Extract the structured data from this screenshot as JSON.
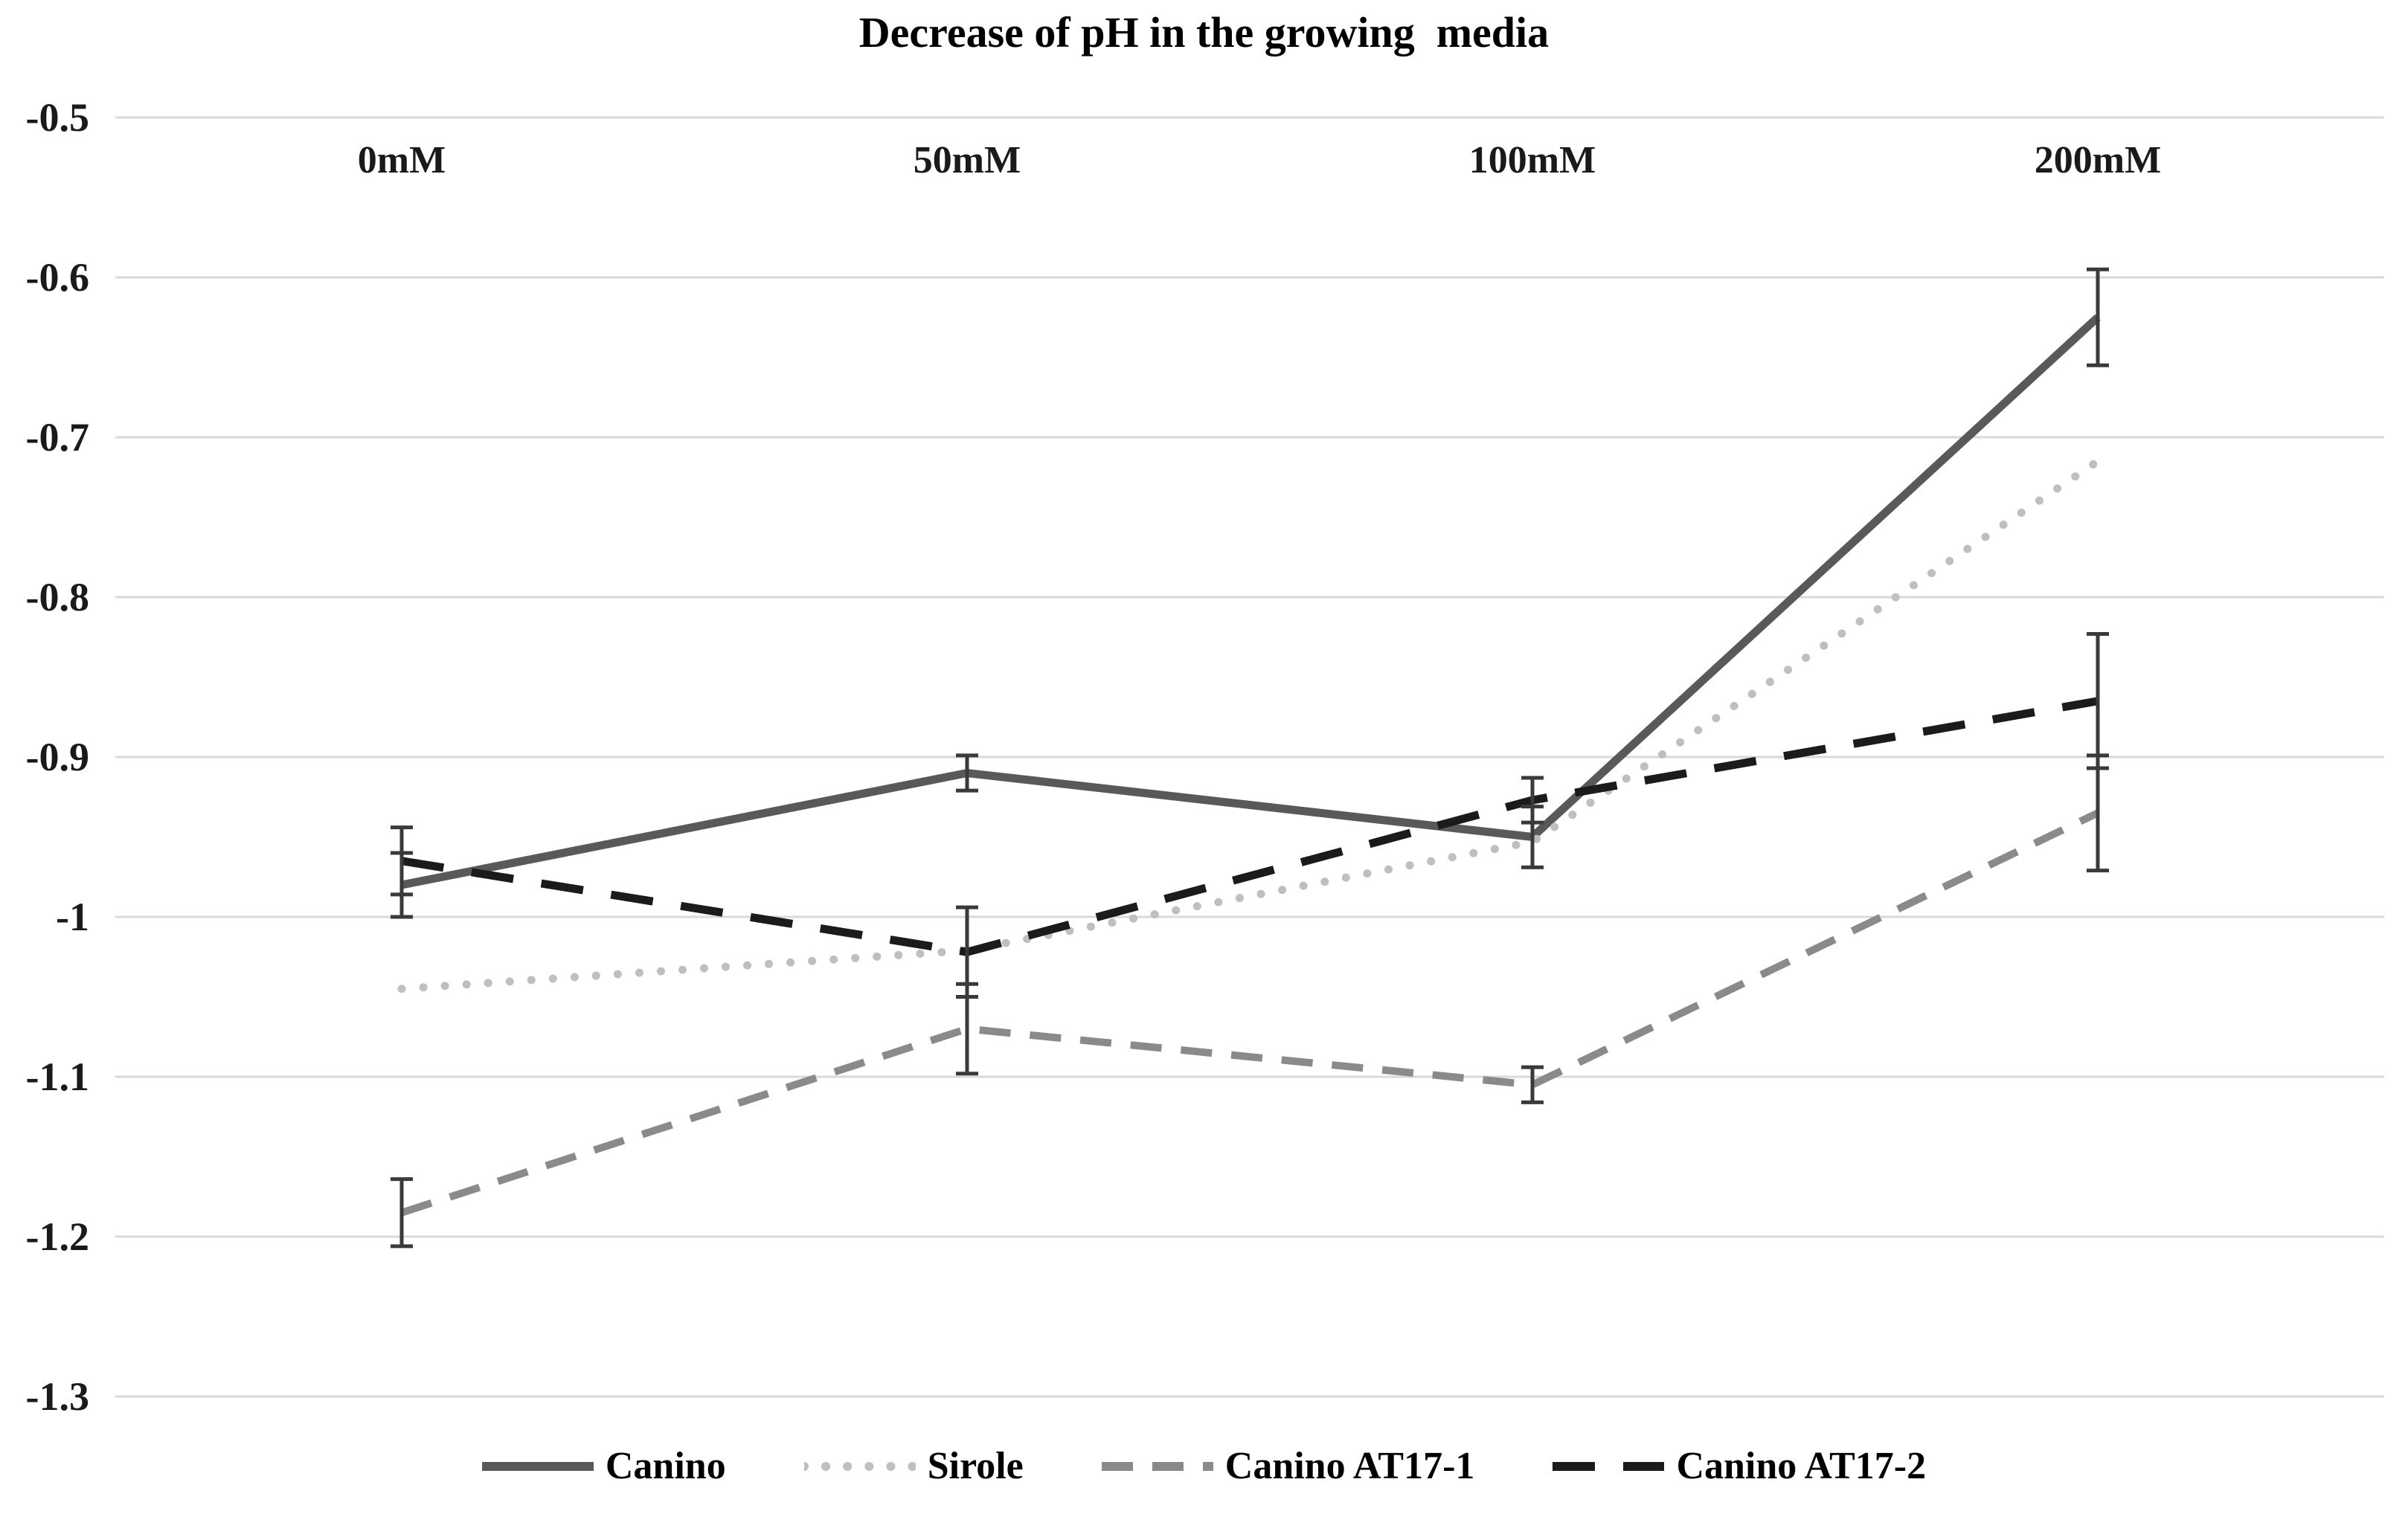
{
  "title": "Decrease of pH in the growing  media",
  "chart_data": {
    "type": "line",
    "title": "Decrease of pH in the growing  media",
    "categories": [
      "0mM",
      "50mM",
      "100mM",
      "200mM"
    ],
    "y_tick_labels": [
      "-0.5",
      "-0.6",
      "-0.7",
      "-0.8",
      "-0.9",
      "-1",
      "-1.1",
      "-1.2",
      "-1.3"
    ],
    "y_tick_values": [
      -0.5,
      -0.6,
      -0.7,
      -0.8,
      -0.9,
      -1.0,
      -1.1,
      -1.2,
      -1.3
    ],
    "ylim": [
      -1.3,
      -0.5
    ],
    "grid": true,
    "gridline_color": "#d9d9d9",
    "error_bar_color": "#3a3a3a",
    "background_color": "#ffffff",
    "legend_position": "bottom",
    "series": [
      {
        "name": "Canino",
        "style": "solid",
        "color": "#595959",
        "values": [
          -0.98,
          -0.91,
          -0.95,
          -0.625
        ],
        "errors": [
          0.02,
          0.011,
          0.019,
          0.03
        ]
      },
      {
        "name": "Sirole",
        "style": "dotted",
        "color": "#bfbfbf",
        "values": [
          -1.045,
          -1.021,
          -0.953,
          -0.715
        ],
        "errors": [
          0,
          0,
          0,
          0
        ]
      },
      {
        "name": "Canino AT17-1",
        "style": "dashed",
        "color": "#8a8a8a",
        "values": [
          -1.185,
          -1.07,
          -1.105,
          -0.935
        ],
        "errors": [
          0.021,
          0.028,
          0.011,
          0.036
        ]
      },
      {
        "name": "Canino AT17-2",
        "style": "long-dash",
        "color": "#1b1b1b",
        "values": [
          -0.965,
          -1.022,
          -0.927,
          -0.865
        ],
        "errors": [
          0.021,
          0.028,
          0.014,
          0.042
        ]
      }
    ]
  }
}
